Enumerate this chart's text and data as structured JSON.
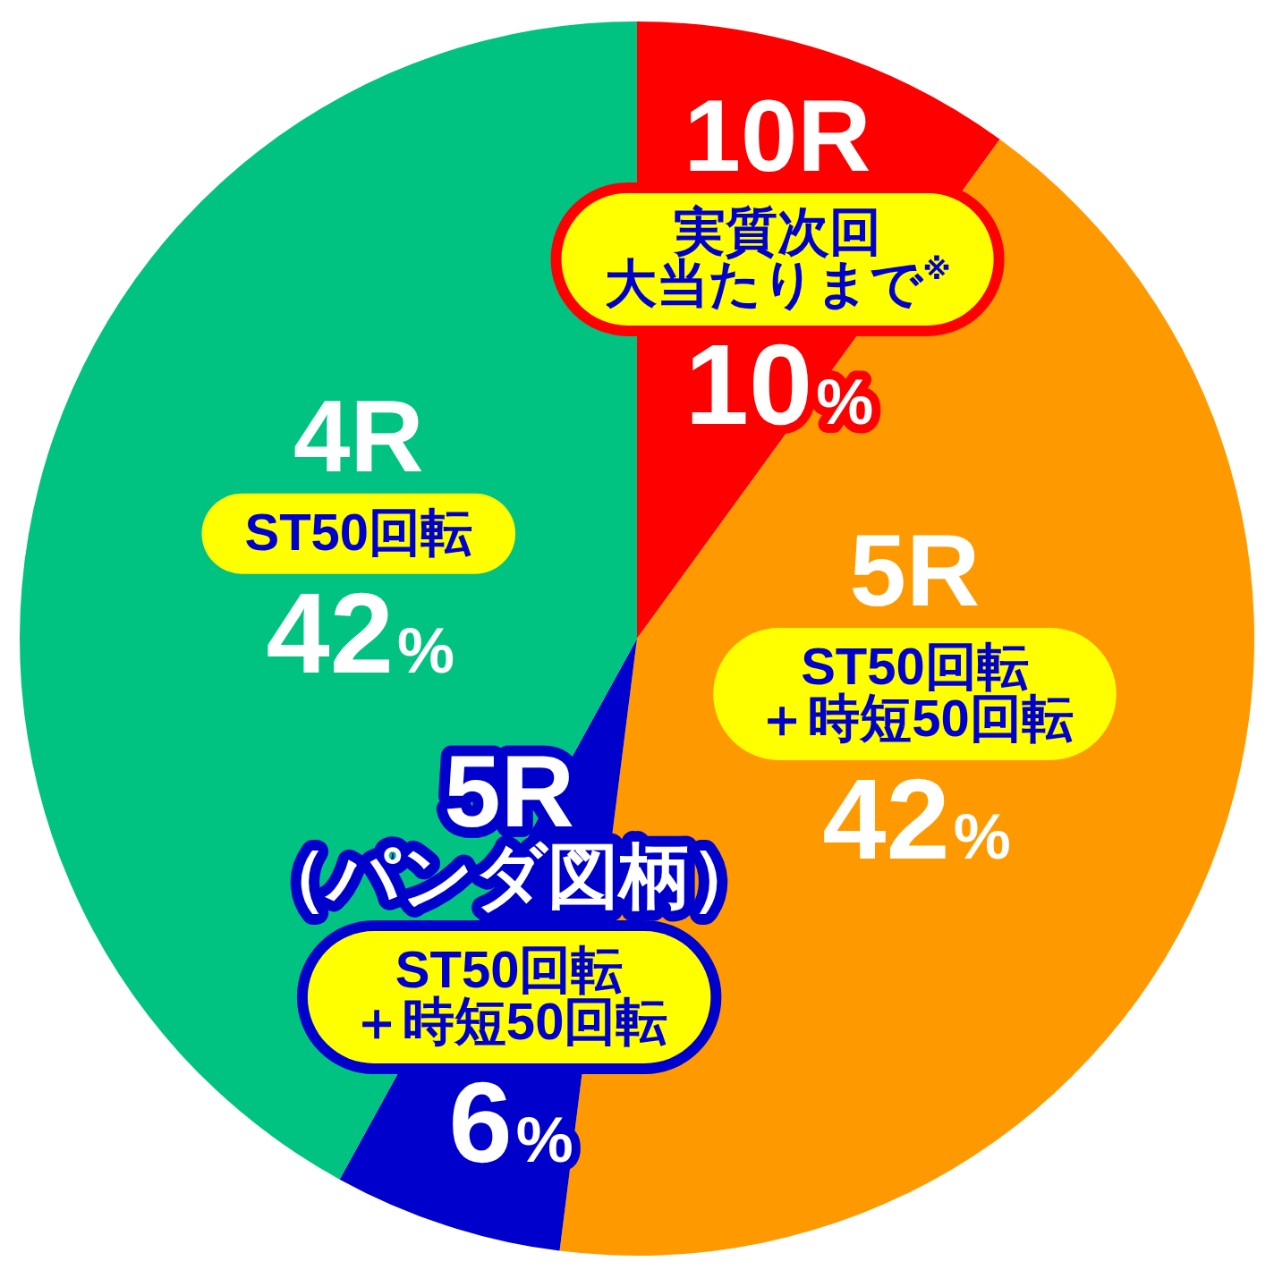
{
  "chart_data": {
    "type": "pie",
    "categories": [
      "10R",
      "5R",
      "5R\n（パンダ図柄）",
      "4R"
    ],
    "values": [
      10,
      42,
      6,
      42
    ],
    "colors": [
      "#ff0000",
      "#ff9900",
      "#0000cc",
      "#00c382"
    ],
    "value_labels": [
      "10%",
      "42%",
      "6%",
      "42%"
    ],
    "annotations": [
      "実質次回大当たりまで$^{※}$",
      "ST50回転＋時短50回転",
      "ST50回転＋時短50回転",
      "ST50回転"
    ]
  }
}
